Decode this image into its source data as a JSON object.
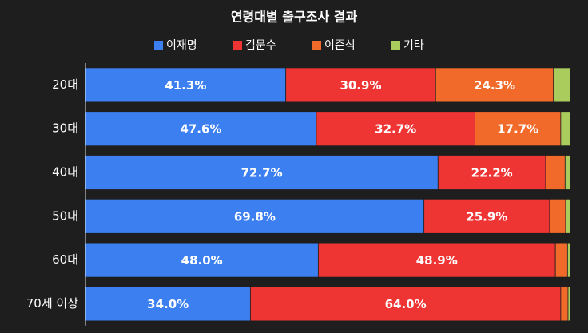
{
  "chart_data": {
    "type": "stacked-bar-horizontal",
    "title": "연령대별 출구조사 결과",
    "categories": [
      "20대",
      "30대",
      "40대",
      "50대",
      "60대",
      "70세 이상"
    ],
    "xlim": [
      0,
      100
    ],
    "series": [
      {
        "name": "이재명",
        "color": "#3b7ff0",
        "values": [
          41.3,
          47.6,
          72.7,
          69.8,
          48.0,
          34.0
        ],
        "value_labels": [
          "41.3%",
          "47.6%",
          "72.7%",
          "69.8%",
          "48.0%",
          "34.0%"
        ]
      },
      {
        "name": "김문수",
        "color": "#ef3434",
        "values": [
          30.9,
          32.7,
          22.2,
          25.9,
          48.9,
          64.0
        ],
        "value_labels": [
          "30.9%",
          "32.7%",
          "22.2%",
          "25.9%",
          "48.9%",
          "64.0%"
        ]
      },
      {
        "name": "이준석",
        "color": "#f26a2a",
        "values": [
          24.3,
          17.7,
          4.0,
          3.3,
          2.5,
          1.5
        ],
        "value_labels": [
          "24.3%",
          "17.7%",
          null,
          null,
          null,
          null
        ]
      },
      {
        "name": "기타",
        "color": "#a9cc5c",
        "values": [
          3.5,
          2.0,
          1.1,
          1.0,
          0.6,
          0.5
        ],
        "value_labels": [
          null,
          null,
          null,
          null,
          null,
          null
        ]
      }
    ]
  }
}
